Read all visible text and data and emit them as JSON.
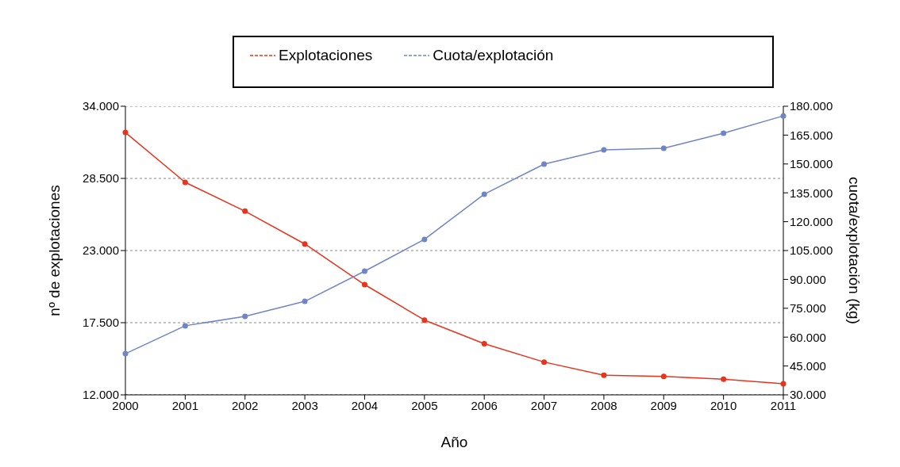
{
  "chart_data": {
    "type": "line",
    "xlabel": "Año",
    "ylabel": "nº de explotaciones",
    "y2label": "cuota/explotación (kg)",
    "categories": [
      "2000",
      "2001",
      "2002",
      "2003",
      "2004",
      "2005",
      "2006",
      "2007",
      "2008",
      "2009",
      "2010",
      "2011"
    ],
    "series": [
      {
        "name": "Explotaciones",
        "color": "#e8341c",
        "values": [
          32000,
          28200,
          26000,
          23500,
          20400,
          17700,
          15900,
          14500,
          13500,
          13400,
          13200,
          12850
        ]
      },
      {
        "name": "Cuota/explotación",
        "color": "#7085c8",
        "axis": "y2",
        "values": [
          51400,
          65900,
          70800,
          78600,
          94300,
          110800,
          134300,
          149900,
          157300,
          158200,
          166000,
          175000
        ]
      }
    ],
    "ylim": [
      12000,
      34000
    ],
    "yticks": [
      {
        "value": 12000,
        "label": "12.000"
      },
      {
        "value": 17500,
        "label": "17.500"
      },
      {
        "value": 23000,
        "label": "23.000"
      },
      {
        "value": 28500,
        "label": "28.500"
      },
      {
        "value": 34000,
        "label": "34.000"
      }
    ],
    "y2lim": [
      30000,
      180000
    ],
    "y2ticks": [
      {
        "value": 30000,
        "label": "30.000"
      },
      {
        "value": 45000,
        "label": "45.000"
      },
      {
        "value": 60000,
        "label": "60.000"
      },
      {
        "value": 75000,
        "label": "75.000"
      },
      {
        "value": 90000,
        "label": "90.000"
      },
      {
        "value": 105000,
        "label": "105.000"
      },
      {
        "value": 120000,
        "label": "120.000"
      },
      {
        "value": 135000,
        "label": "135.000"
      },
      {
        "value": 150000,
        "label": "150.000"
      },
      {
        "value": 165000,
        "label": "165.000"
      },
      {
        "value": 180000,
        "label": "180.000"
      }
    ],
    "grid": "y",
    "legend": "top",
    "marker": "circle",
    "line_style": "solid"
  }
}
